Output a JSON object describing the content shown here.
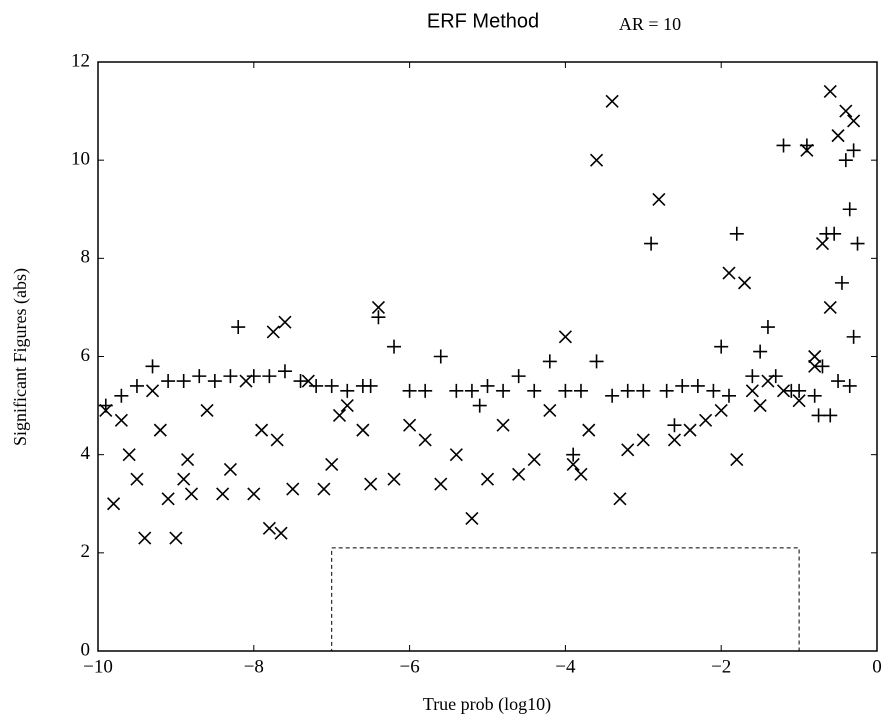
{
  "chart_data": {
    "type": "scatter",
    "title": "ERF Method",
    "annotation": "AR = 10",
    "x_label": "True prob (log10)",
    "y_label": "Significant Figures (abs)",
    "xlim": [
      -10,
      0
    ],
    "ylim": [
      0,
      12
    ],
    "xticks": [
      {
        "value": -10,
        "label": "−10"
      },
      {
        "value": -8,
        "label": "−8"
      },
      {
        "value": -6,
        "label": "−6"
      },
      {
        "value": -4,
        "label": "−4"
      },
      {
        "value": -2,
        "label": "−2"
      },
      0
    ],
    "yticks": [
      0,
      2,
      4,
      6,
      8,
      10,
      12
    ],
    "grid": false,
    "highlight_box": {
      "xlim": [
        -7,
        -1
      ],
      "ylim": [
        0,
        2.1
      ]
    },
    "series": [
      {
        "marker": "plus",
        "color": "#000000",
        "x": [
          -9.9,
          -9.7,
          -9.5,
          -9.3,
          -9.1,
          -8.9,
          -8.7,
          -8.5,
          -8.3,
          -8.2,
          -8.0,
          -7.8,
          -7.6,
          -7.4,
          -7.2,
          -7.0,
          -6.8,
          -6.6,
          -6.4,
          -6.2,
          -6.0,
          -5.8,
          -5.6,
          -5.4,
          -5.2,
          -5.0,
          -4.8,
          -4.6,
          -4.4,
          -4.2,
          -4.0,
          -3.8,
          -3.6,
          -3.4,
          -3.2,
          -3.0,
          -2.9,
          -2.7,
          -2.5,
          -2.3,
          -2.1,
          -2.0,
          -1.9,
          -1.8,
          -1.6,
          -1.5,
          -1.4,
          -1.3,
          -1.2,
          -1.1,
          -1.0,
          -0.9,
          -0.8,
          -0.75,
          -0.7,
          -0.65,
          -0.6,
          -0.55,
          -0.5,
          -0.45,
          -0.4,
          -0.35,
          -0.3,
          -0.25,
          -0.3,
          -0.35,
          -2.6,
          -3.9,
          -5.1,
          -6.5
        ],
        "values": [
          5.0,
          5.2,
          5.4,
          5.8,
          5.5,
          5.5,
          5.6,
          5.5,
          5.6,
          6.6,
          5.6,
          5.6,
          5.7,
          5.5,
          5.4,
          5.4,
          5.3,
          5.4,
          6.8,
          6.2,
          5.3,
          5.3,
          6.0,
          5.3,
          5.3,
          5.4,
          5.3,
          5.6,
          5.3,
          5.9,
          5.3,
          5.3,
          5.9,
          5.2,
          5.3,
          5.3,
          8.3,
          5.3,
          5.4,
          5.4,
          5.3,
          6.2,
          5.2,
          8.5,
          5.6,
          6.1,
          6.6,
          5.6,
          10.3,
          5.3,
          5.3,
          10.3,
          5.2,
          4.8,
          5.8,
          8.5,
          4.8,
          8.5,
          5.5,
          7.5,
          10.0,
          9.0,
          10.2,
          8.3,
          6.4,
          5.4,
          4.6,
          4.0,
          5.0,
          5.4
        ]
      },
      {
        "marker": "cross",
        "color": "#000000",
        "x": [
          -9.9,
          -9.8,
          -9.7,
          -9.6,
          -9.5,
          -9.4,
          -9.3,
          -9.2,
          -9.1,
          -9.0,
          -8.9,
          -8.85,
          -8.8,
          -8.6,
          -8.4,
          -8.3,
          -8.1,
          -8.0,
          -7.9,
          -7.8,
          -7.75,
          -7.7,
          -7.65,
          -7.6,
          -7.5,
          -7.3,
          -7.1,
          -7.0,
          -6.9,
          -6.8,
          -6.6,
          -6.5,
          -6.4,
          -6.2,
          -6.0,
          -5.8,
          -5.6,
          -5.4,
          -5.2,
          -5.0,
          -4.8,
          -4.6,
          -4.4,
          -4.2,
          -4.0,
          -3.9,
          -3.8,
          -3.7,
          -3.6,
          -3.4,
          -3.3,
          -3.2,
          -3.0,
          -2.8,
          -2.6,
          -2.4,
          -2.2,
          -2.0,
          -1.9,
          -1.8,
          -1.7,
          -1.6,
          -1.5,
          -1.4,
          -1.2,
          -1.0,
          -0.9,
          -0.8,
          -0.7,
          -0.6,
          -0.5,
          -0.4,
          -0.3,
          -0.6,
          -0.8
        ],
        "values": [
          4.9,
          3.0,
          4.7,
          4.0,
          3.5,
          2.3,
          5.3,
          4.5,
          3.1,
          2.3,
          3.5,
          3.9,
          3.2,
          4.9,
          3.2,
          3.7,
          5.5,
          3.2,
          4.5,
          2.5,
          6.5,
          4.3,
          2.4,
          6.7,
          3.3,
          5.5,
          3.3,
          3.8,
          4.8,
          5.0,
          4.5,
          3.4,
          7.0,
          3.5,
          4.6,
          4.3,
          3.4,
          4.0,
          2.7,
          3.5,
          4.6,
          3.6,
          3.9,
          4.9,
          6.4,
          3.8,
          3.6,
          4.5,
          10.0,
          11.2,
          3.1,
          4.1,
          4.3,
          9.2,
          4.3,
          4.5,
          4.7,
          4.9,
          7.7,
          3.9,
          7.5,
          5.3,
          5.0,
          5.5,
          5.3,
          5.1,
          10.2,
          6.0,
          8.3,
          11.4,
          10.5,
          11.0,
          10.8,
          7.0,
          5.8
        ]
      }
    ]
  }
}
